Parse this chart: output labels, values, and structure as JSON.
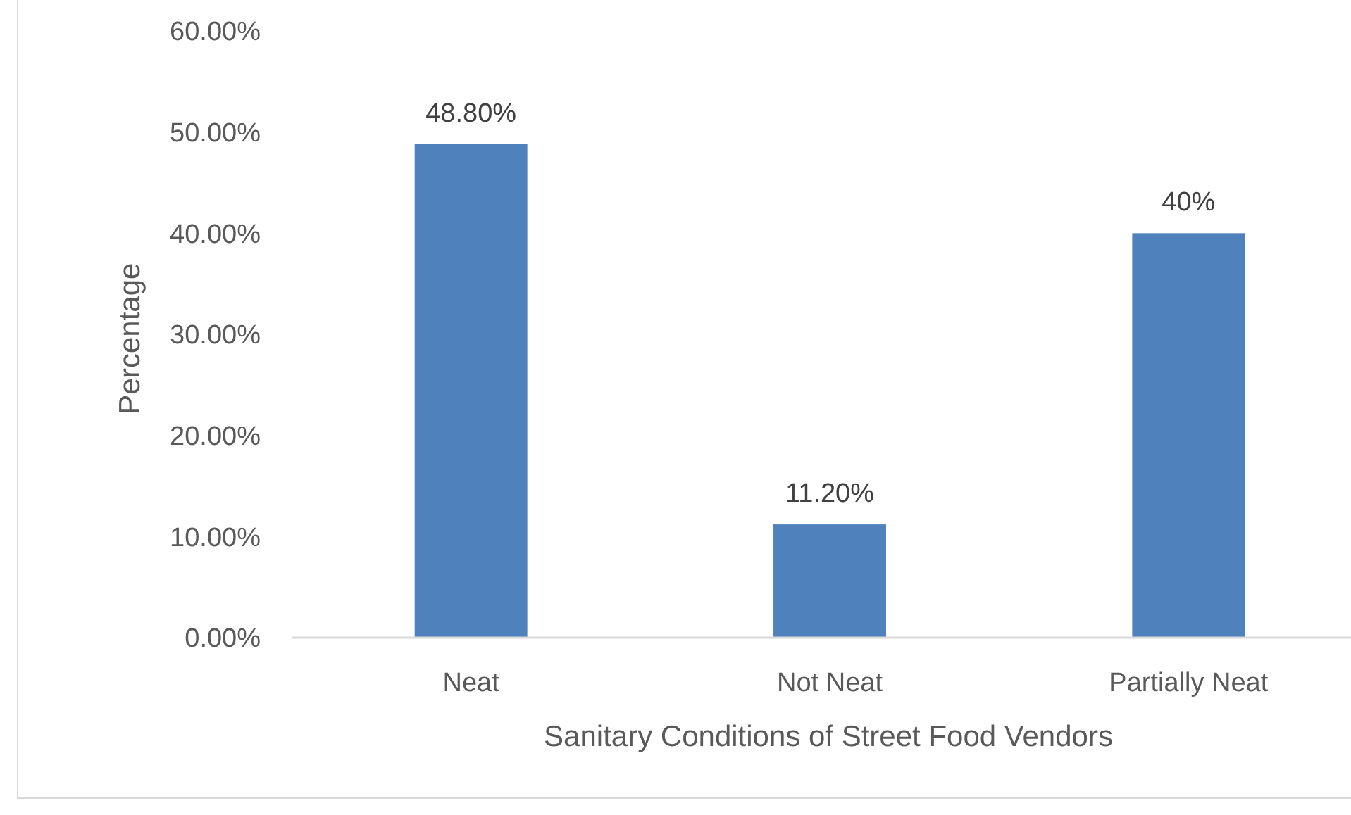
{
  "chart_data": {
    "type": "bar",
    "xlabel": "Sanitary Conditions of Street Food Vendors",
    "ylabel": "Percentage",
    "categories": [
      "Neat",
      "Not Neat",
      "Partially Neat"
    ],
    "values": [
      48.8,
      11.2,
      40
    ],
    "color": "#4f81bd",
    "value_labels": [
      "48.80%",
      "11.20%",
      "40%"
    ],
    "ylim": [
      0,
      60
    ],
    "yticks": [
      {
        "value": 0,
        "label": "0.00%"
      },
      {
        "value": 10,
        "label": "10.00%"
      },
      {
        "value": 20,
        "label": "20.00%"
      },
      {
        "value": 30,
        "label": "30.00%"
      },
      {
        "value": 40,
        "label": "40.00%"
      },
      {
        "value": 50,
        "label": "50.00%"
      },
      {
        "value": 60,
        "label": "60.00%"
      }
    ],
    "grid": false
  }
}
